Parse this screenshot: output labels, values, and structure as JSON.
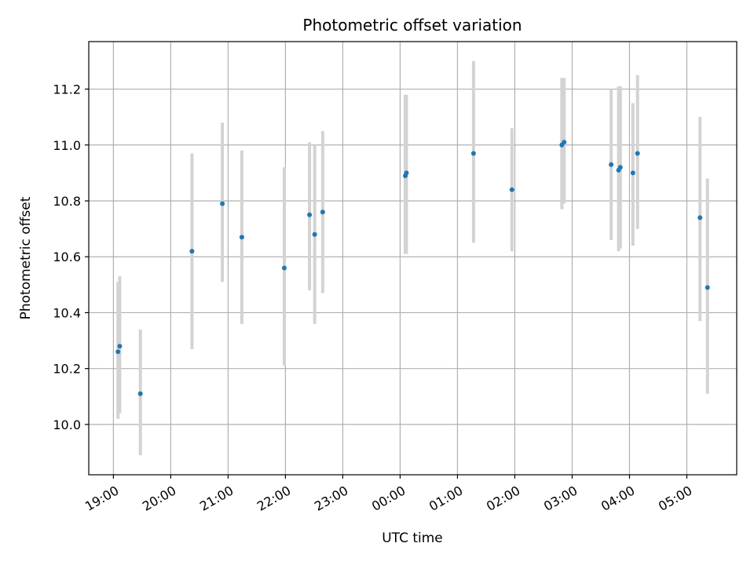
{
  "chart_data": {
    "type": "scatter",
    "title": "Photometric offset variation",
    "xlabel": "UTC time",
    "ylabel": "Photometric offset",
    "x_unit": "hours (UTC, continuing past midnight)",
    "xlim": [
      18.57,
      29.87
    ],
    "ylim": [
      9.82,
      11.37
    ],
    "grid": true,
    "colors": {
      "point": "#1f77b4",
      "errorbar": "#d3d3d3",
      "grid": "#b0b0b0",
      "axes": "#000000"
    },
    "x_ticks": [
      {
        "value": 19,
        "label": "19:00"
      },
      {
        "value": 20,
        "label": "20:00"
      },
      {
        "value": 21,
        "label": "21:00"
      },
      {
        "value": 22,
        "label": "22:00"
      },
      {
        "value": 23,
        "label": "23:00"
      },
      {
        "value": 24,
        "label": "00:00"
      },
      {
        "value": 25,
        "label": "01:00"
      },
      {
        "value": 26,
        "label": "02:00"
      },
      {
        "value": 27,
        "label": "03:00"
      },
      {
        "value": 28,
        "label": "04:00"
      },
      {
        "value": 29,
        "label": "05:00"
      }
    ],
    "y_ticks": [
      {
        "value": 10.0,
        "label": "10.0"
      },
      {
        "value": 10.2,
        "label": "10.2"
      },
      {
        "value": 10.4,
        "label": "10.4"
      },
      {
        "value": 10.6,
        "label": "10.6"
      },
      {
        "value": 10.8,
        "label": "10.8"
      },
      {
        "value": 11.0,
        "label": "11.0"
      },
      {
        "value": 11.2,
        "label": "11.2"
      }
    ],
    "points": [
      {
        "x": 19.08,
        "y": 10.26,
        "err_low": 10.02,
        "err_high": 10.51
      },
      {
        "x": 19.11,
        "y": 10.28,
        "err_low": 10.04,
        "err_high": 10.53
      },
      {
        "x": 19.47,
        "y": 10.11,
        "err_low": 9.89,
        "err_high": 10.34
      },
      {
        "x": 20.37,
        "y": 10.62,
        "err_low": 10.27,
        "err_high": 10.97
      },
      {
        "x": 20.9,
        "y": 10.79,
        "err_low": 10.51,
        "err_high": 11.08
      },
      {
        "x": 21.24,
        "y": 10.67,
        "err_low": 10.36,
        "err_high": 10.98
      },
      {
        "x": 21.98,
        "y": 10.56,
        "err_low": 10.21,
        "err_high": 10.92
      },
      {
        "x": 22.42,
        "y": 10.75,
        "err_low": 10.48,
        "err_high": 11.01
      },
      {
        "x": 22.51,
        "y": 10.68,
        "err_low": 10.36,
        "err_high": 11.0
      },
      {
        "x": 22.65,
        "y": 10.76,
        "err_low": 10.47,
        "err_high": 11.05
      },
      {
        "x": 24.09,
        "y": 10.89,
        "err_low": 10.61,
        "err_high": 11.18
      },
      {
        "x": 24.11,
        "y": 10.9,
        "err_low": 10.61,
        "err_high": 11.18
      },
      {
        "x": 25.28,
        "y": 10.97,
        "err_low": 10.65,
        "err_high": 11.3
      },
      {
        "x": 25.95,
        "y": 10.84,
        "err_low": 10.62,
        "err_high": 11.06
      },
      {
        "x": 26.82,
        "y": 11.0,
        "err_low": 10.77,
        "err_high": 11.24
      },
      {
        "x": 26.86,
        "y": 11.01,
        "err_low": 10.79,
        "err_high": 11.24
      },
      {
        "x": 27.68,
        "y": 10.93,
        "err_low": 10.66,
        "err_high": 11.2
      },
      {
        "x": 27.81,
        "y": 10.91,
        "err_low": 10.62,
        "err_high": 11.21
      },
      {
        "x": 27.84,
        "y": 10.92,
        "err_low": 10.63,
        "err_high": 11.21
      },
      {
        "x": 28.06,
        "y": 10.9,
        "err_low": 10.64,
        "err_high": 11.15
      },
      {
        "x": 28.14,
        "y": 10.97,
        "err_low": 10.7,
        "err_high": 11.25
      },
      {
        "x": 29.23,
        "y": 10.74,
        "err_low": 10.37,
        "err_high": 11.1
      },
      {
        "x": 29.36,
        "y": 10.49,
        "err_low": 10.11,
        "err_high": 10.88
      }
    ]
  }
}
